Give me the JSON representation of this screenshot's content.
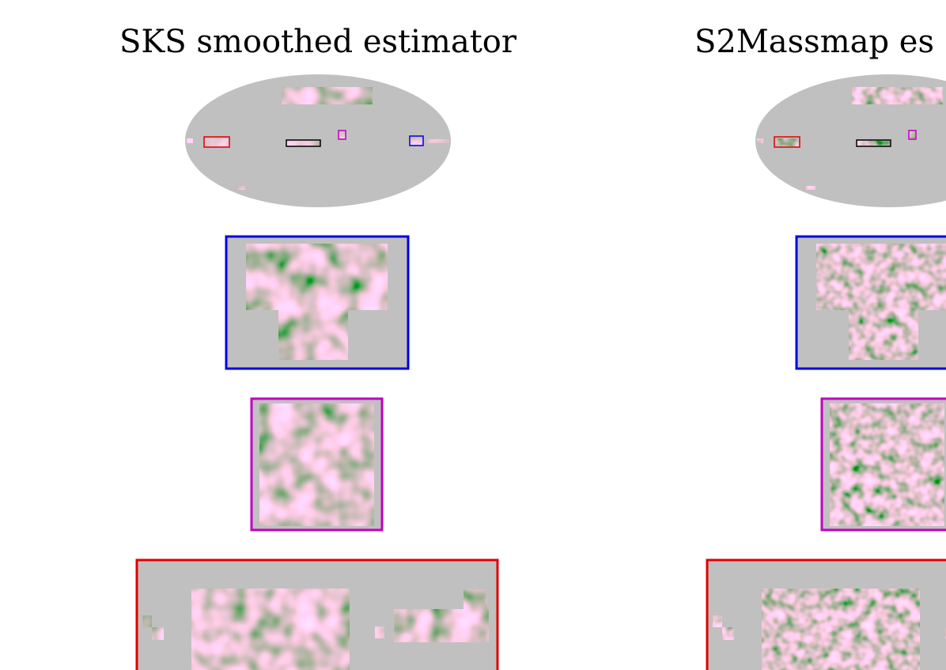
{
  "panels": [
    {
      "title": "SKS smoothed estimator"
    },
    {
      "title": "S2Massmap es"
    }
  ]
}
